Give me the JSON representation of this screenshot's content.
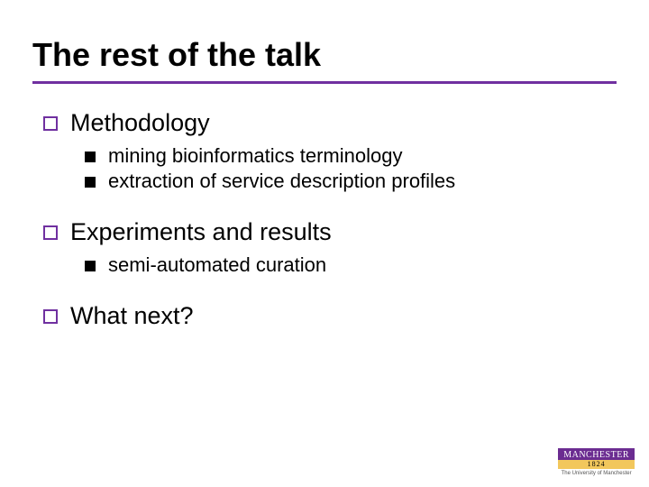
{
  "colors": {
    "accent": "#7030a0",
    "text": "#000000",
    "background": "#ffffff",
    "logo_bg": "#6b2c91",
    "logo_year_bg": "#f2c75c"
  },
  "typography": {
    "title_fontsize": 36,
    "level1_fontsize": 27,
    "level2_fontsize": 22,
    "font_family": "Verdana"
  },
  "title": "The rest of the talk",
  "bullets": [
    {
      "label": "Methodology",
      "children": [
        "mining bioinformatics terminology",
        "extraction of service description profiles"
      ]
    },
    {
      "label": "Experiments and results",
      "children": [
        "semi-automated curation"
      ]
    },
    {
      "label": "What next?",
      "children": []
    }
  ],
  "logo": {
    "name": "MANCHESTER",
    "year": "1824",
    "subtitle": "The University of Manchester"
  }
}
